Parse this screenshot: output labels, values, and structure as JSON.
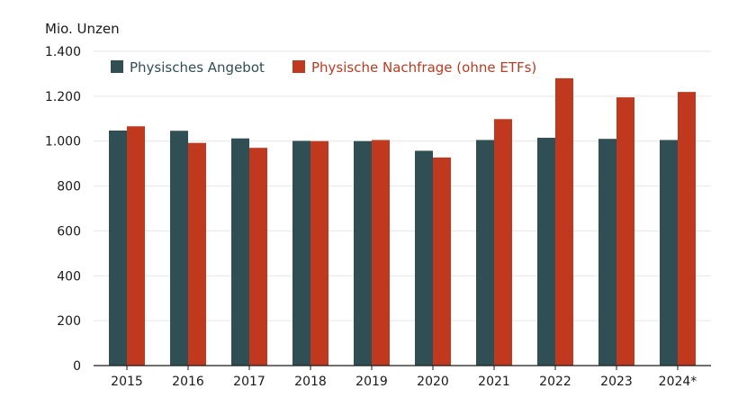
{
  "chart_data": {
    "type": "bar",
    "ylabel": "Mio. Unzen",
    "ylim": [
      0,
      1400
    ],
    "yticks": [
      0,
      200,
      400,
      600,
      800,
      1000,
      1200,
      1400
    ],
    "ytick_labels": [
      "0",
      "200",
      "400",
      "600",
      "800",
      "1.000",
      "1.200",
      "1.400"
    ],
    "categories": [
      "2015",
      "2016",
      "2017",
      "2018",
      "2019",
      "2020",
      "2021",
      "2022",
      "2023",
      "2024*"
    ],
    "series": [
      {
        "name": "Physisches Angebot",
        "color": "#2f4f55",
        "values": [
          1047,
          1046,
          1012,
          1001,
          1000,
          957,
          1005,
          1015,
          1010,
          1005
        ]
      },
      {
        "name": "Physische Nachfrage (ohne ETFs)",
        "color": "#c0391f",
        "values": [
          1066,
          992,
          970,
          1000,
          1005,
          927,
          1098,
          1280,
          1195,
          1219
        ]
      }
    ],
    "grid": true,
    "legend_position": "top"
  }
}
